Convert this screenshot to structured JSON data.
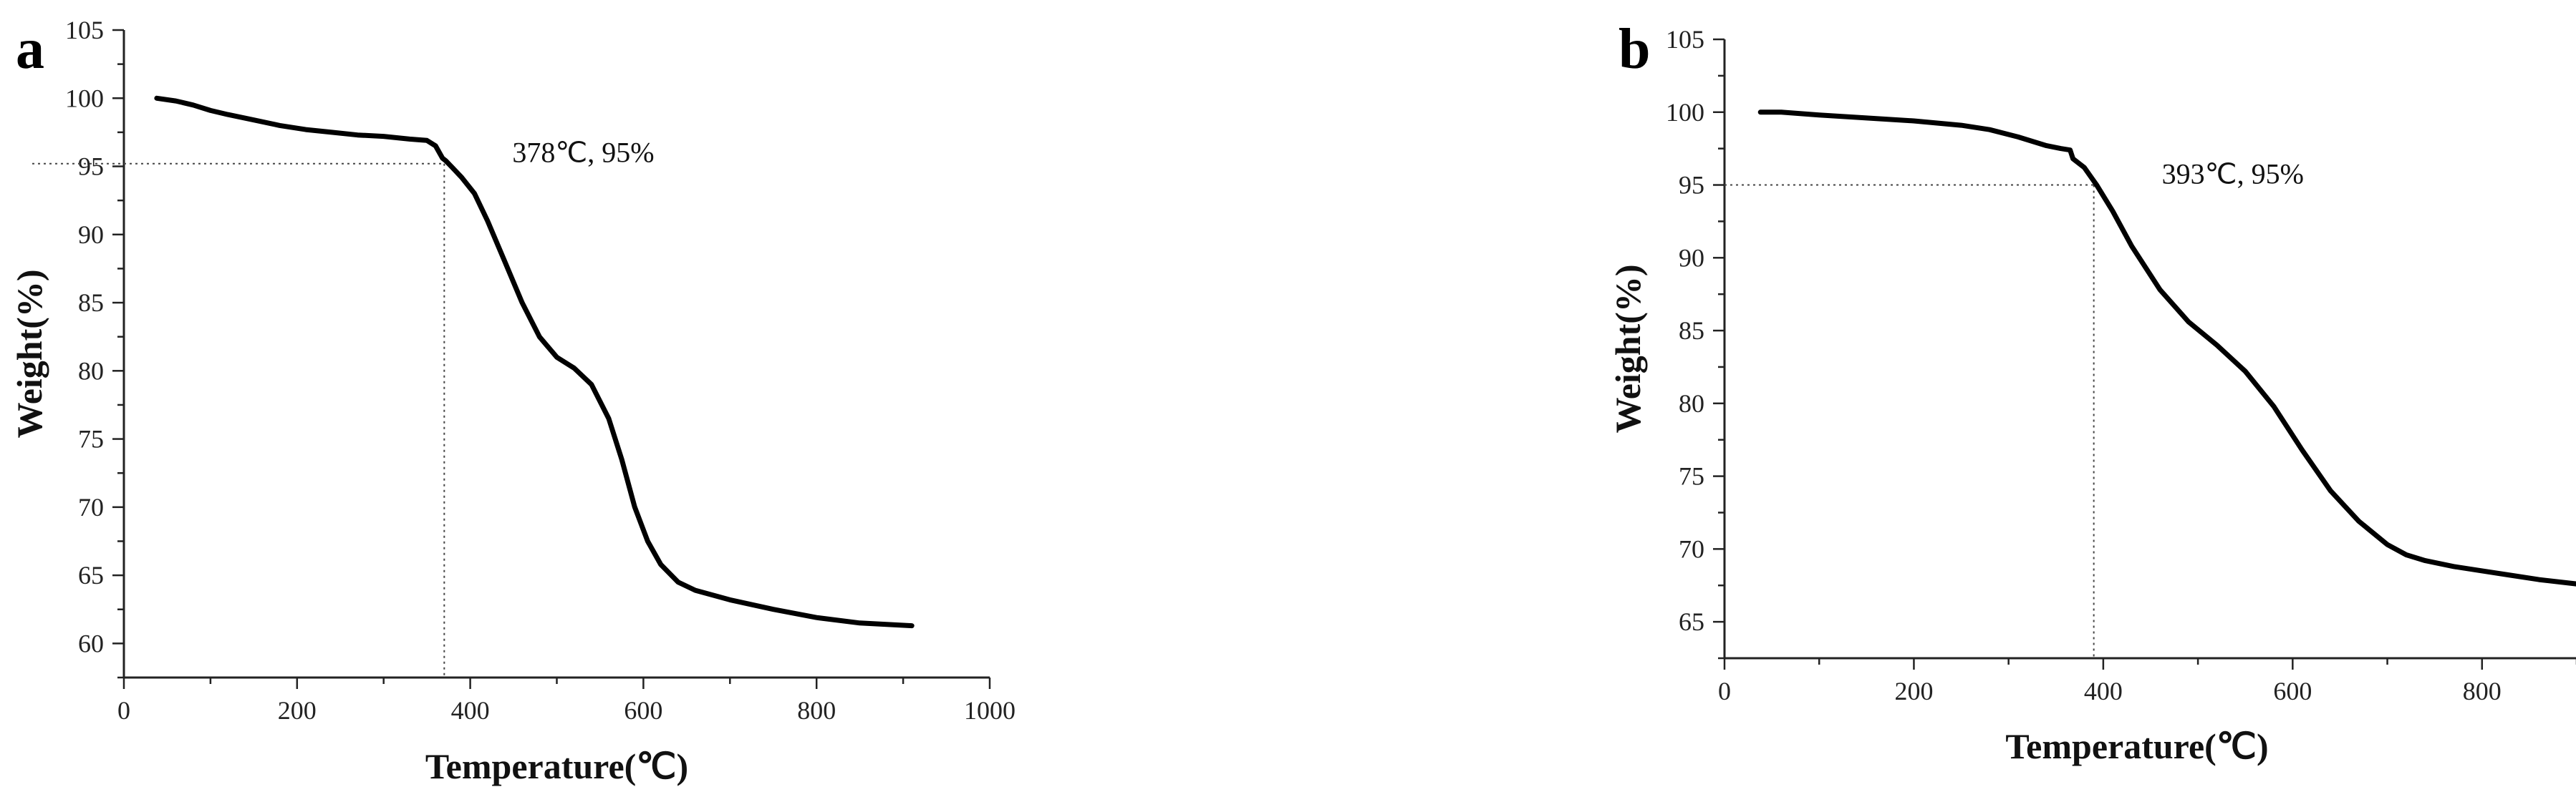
{
  "chart_data": [
    {
      "panel_label": "a",
      "type": "line",
      "xlabel": "Temperature(℃)",
      "ylabel": "Weight(%)",
      "xlim": [
        0,
        1000
      ],
      "ylim": [
        57.5,
        105
      ],
      "xticks": [
        0,
        200,
        400,
        600,
        800,
        1000
      ],
      "yticks": [
        60,
        65,
        70,
        75,
        80,
        85,
        90,
        95,
        100,
        105
      ],
      "grid": false,
      "annotation": {
        "text": "378℃, 95%",
        "x": 370,
        "y": 95.2
      },
      "series": [
        {
          "x": [
            38,
            60,
            80,
            100,
            120,
            150,
            180,
            210,
            240,
            270,
            300,
            330,
            350,
            360,
            368,
            372,
            378,
            390,
            405,
            420,
            440,
            460,
            480,
            500,
            520,
            540,
            560,
            575,
            590,
            605,
            620,
            640,
            660,
            700,
            750,
            800,
            850,
            910
          ],
          "y": [
            100,
            99.8,
            99.5,
            99.1,
            98.8,
            98.4,
            98.0,
            97.7,
            97.5,
            97.3,
            97.2,
            97.0,
            96.9,
            96.5,
            95.6,
            95.4,
            95.0,
            94.2,
            93.0,
            91.0,
            88.0,
            85.0,
            82.5,
            81.0,
            80.2,
            79.0,
            76.5,
            73.5,
            70.0,
            67.5,
            65.8,
            64.5,
            63.9,
            63.2,
            62.5,
            61.9,
            61.5,
            61.3
          ]
        }
      ]
    },
    {
      "panel_label": "b",
      "type": "line",
      "xlabel": "Temperature(℃)",
      "ylabel": "Weight(%)",
      "xlim": [
        0,
        900
      ],
      "ylim": [
        62.5,
        105
      ],
      "xticks": [
        0,
        200,
        400,
        600,
        800
      ],
      "yticks": [
        65,
        70,
        75,
        80,
        85,
        90,
        95,
        100,
        105
      ],
      "grid": false,
      "annotation": {
        "text": "393℃, 95%",
        "x": 390,
        "y": 95.0
      },
      "series": [
        {
          "x": [
            38,
            60,
            100,
            150,
            200,
            250,
            280,
            310,
            340,
            355,
            365,
            368,
            380,
            393,
            410,
            430,
            460,
            490,
            520,
            550,
            580,
            610,
            640,
            670,
            700,
            720,
            740,
            770,
            800,
            830,
            860,
            900
          ],
          "y": [
            100,
            100.0,
            99.8,
            99.6,
            99.4,
            99.1,
            98.8,
            98.3,
            97.7,
            97.5,
            97.4,
            96.8,
            96.2,
            95.0,
            93.2,
            90.8,
            87.8,
            85.6,
            84.0,
            82.2,
            79.8,
            76.8,
            74.0,
            71.9,
            70.3,
            69.6,
            69.2,
            68.8,
            68.5,
            68.2,
            67.9,
            67.6
          ]
        }
      ]
    }
  ]
}
